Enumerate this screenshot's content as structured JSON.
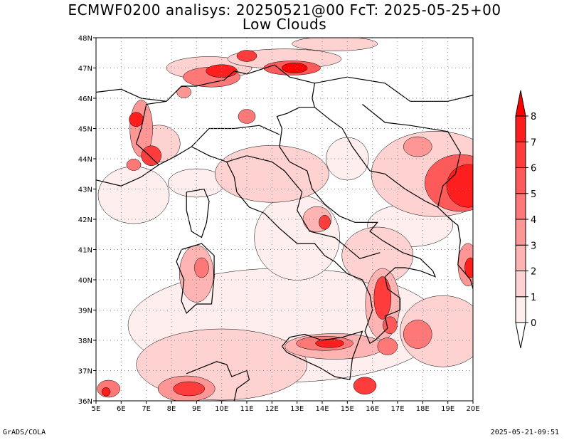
{
  "title_line1": "ECMWF0200 analisys: 20250521@00 FcT: 2025-05-25+00",
  "title_line2": "Low Clouds",
  "footer_left": "GrADS/COLA",
  "footer_right": "2025-05-21-09:51",
  "lon_labels": [
    "5E",
    "6E",
    "7E",
    "8E",
    "9E",
    "10E",
    "11E",
    "12E",
    "13E",
    "14E",
    "15E",
    "16E",
    "17E",
    "18E",
    "19E",
    "20E"
  ],
  "lat_labels": [
    "36N",
    "37N",
    "38N",
    "39N",
    "40N",
    "41N",
    "42N",
    "43N",
    "44N",
    "45N",
    "46N",
    "47N",
    "48N"
  ],
  "colorbar": {
    "labels": [
      "0",
      "1",
      "2",
      "3",
      "4",
      "5",
      "6",
      "7",
      "8"
    ],
    "colors": [
      "#ffeeee",
      "#ffd2d2",
      "#ffb4b4",
      "#ff9696",
      "#ff7878",
      "#ff5a5a",
      "#ff3c3c",
      "#ff1e1e",
      "#ff0000"
    ]
  },
  "colors": {
    "land_line": "#000000",
    "grid": "#888888"
  }
}
